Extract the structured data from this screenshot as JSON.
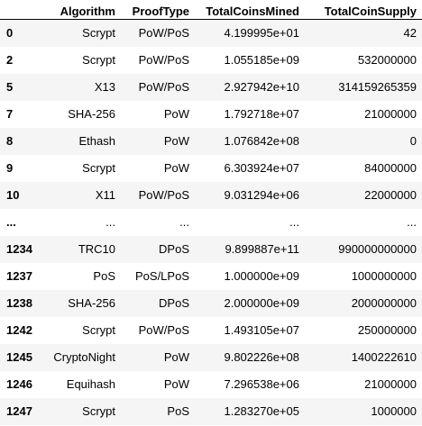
{
  "table": {
    "columns": [
      "",
      "Algorithm",
      "ProofType",
      "TotalCoinsMined",
      "TotalCoinSupply"
    ],
    "rows": [
      {
        "index": "0",
        "cells": [
          "Scrypt",
          "PoW/PoS",
          "4.199995e+01",
          "42"
        ]
      },
      {
        "index": "2",
        "cells": [
          "Scrypt",
          "PoW/PoS",
          "1.055185e+09",
          "532000000"
        ]
      },
      {
        "index": "5",
        "cells": [
          "X13",
          "PoW/PoS",
          "2.927942e+10",
          "314159265359"
        ]
      },
      {
        "index": "7",
        "cells": [
          "SHA-256",
          "PoW",
          "1.792718e+07",
          "21000000"
        ]
      },
      {
        "index": "8",
        "cells": [
          "Ethash",
          "PoW",
          "1.076842e+08",
          "0"
        ]
      },
      {
        "index": "9",
        "cells": [
          "Scrypt",
          "PoW",
          "6.303924e+07",
          "84000000"
        ]
      },
      {
        "index": "10",
        "cells": [
          "X11",
          "PoW/PoS",
          "9.031294e+06",
          "22000000"
        ]
      },
      {
        "index": "...",
        "cells": [
          "...",
          "...",
          "...",
          "..."
        ]
      },
      {
        "index": "1234",
        "cells": [
          "TRC10",
          "DPoS",
          "9.899887e+11",
          "990000000000"
        ]
      },
      {
        "index": "1237",
        "cells": [
          "PoS",
          "PoS/LPoS",
          "1.000000e+09",
          "1000000000"
        ]
      },
      {
        "index": "1238",
        "cells": [
          "SHA-256",
          "DPoS",
          "2.000000e+09",
          "2000000000"
        ]
      },
      {
        "index": "1242",
        "cells": [
          "Scrypt",
          "PoW/PoS",
          "1.493105e+07",
          "250000000"
        ]
      },
      {
        "index": "1245",
        "cells": [
          "CryptoNight",
          "PoW",
          "9.802226e+08",
          "1400222610"
        ]
      },
      {
        "index": "1246",
        "cells": [
          "Equihash",
          "PoW",
          "7.296538e+06",
          "21000000"
        ]
      },
      {
        "index": "1247",
        "cells": [
          "Scrypt",
          "PoS",
          "1.283270e+05",
          "1000000"
        ]
      }
    ]
  }
}
